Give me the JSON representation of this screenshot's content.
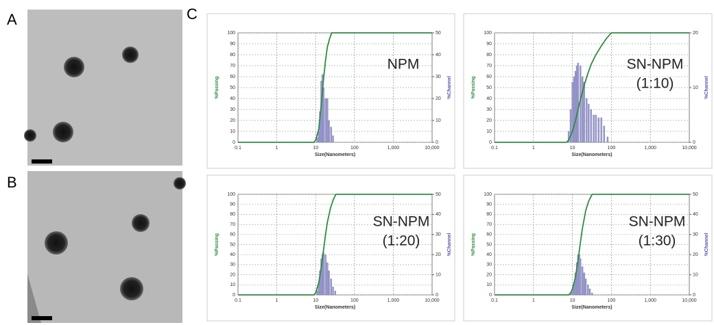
{
  "panel_labels": [
    "A",
    "B",
    "C"
  ],
  "chart_data": [
    {
      "type": "combo",
      "annotation": [
        "NPM"
      ],
      "y_label": "%Passing",
      "y2_label": "%Channel",
      "x_label": "Size(Nanometers)",
      "log_x": true,
      "grid": true,
      "xlim": [
        0.1,
        10000
      ],
      "xticks": [
        0.1,
        1,
        10,
        100,
        {
          "value": 1000,
          "label": "1,000"
        },
        {
          "value": 10000,
          "label": "10,000"
        }
      ],
      "ylim": [
        0,
        100
      ],
      "yticks": [
        0,
        10,
        20,
        30,
        40,
        50,
        60,
        70,
        80,
        90,
        100
      ],
      "y2lim": [
        0,
        50
      ],
      "y2ticks": [
        0,
        10,
        20,
        30,
        40,
        50
      ],
      "series": [
        {
          "name": "%Channel",
          "kind": "bar",
          "axis": "y2",
          "color": "#9c9cd0",
          "x": [
            11,
            12,
            13,
            14,
            15,
            16,
            18,
            20,
            22,
            25,
            28
          ],
          "values": [
            2,
            5,
            14,
            28,
            31,
            25,
            20,
            20,
            10,
            7,
            3
          ]
        },
        {
          "name": "%Passing",
          "kind": "line",
          "color": "#2e8b3e",
          "x": [
            0.1,
            9,
            10,
            12,
            14,
            16,
            18,
            20,
            23,
            26,
            10000
          ],
          "values": [
            0,
            0,
            2,
            12,
            35,
            58,
            75,
            87,
            95,
            100,
            100
          ]
        }
      ]
    },
    {
      "type": "combo",
      "annotation": [
        "SN-NPM",
        "(1:10)"
      ],
      "y_label": "%Passing",
      "y2_label": "%Channel",
      "x_label": "Size(Nanometers)",
      "log_x": true,
      "grid": true,
      "xlim": [
        0.1,
        10000
      ],
      "xticks": [
        0.1,
        1,
        10,
        100,
        {
          "value": 1000,
          "label": "1,000"
        },
        {
          "value": 10000,
          "label": "10,000"
        }
      ],
      "ylim": [
        0,
        100
      ],
      "yticks": [
        0,
        10,
        20,
        30,
        40,
        50,
        60,
        70,
        80,
        90,
        100
      ],
      "y2lim": [
        0,
        20
      ],
      "y2ticks": [
        0,
        10,
        20
      ],
      "series": [
        {
          "name": "%Channel",
          "kind": "bar",
          "axis": "y2",
          "color": "#9c9cd0",
          "x": [
            8,
            9,
            10,
            11,
            12,
            13,
            14,
            16,
            18,
            20,
            23,
            26,
            30,
            35,
            40,
            47,
            55,
            65,
            80
          ],
          "values": [
            2,
            6,
            11,
            12,
            13,
            14,
            14.5,
            14,
            12,
            11,
            8,
            7,
            6,
            5,
            5,
            4.5,
            4.5,
            3,
            1
          ]
        },
        {
          "name": "%Passing",
          "kind": "line",
          "color": "#2e8b3e",
          "x": [
            0.1,
            7,
            8,
            10,
            12,
            15,
            20,
            25,
            30,
            40,
            55,
            75,
            100,
            10000
          ],
          "values": [
            0,
            0,
            2,
            10,
            20,
            35,
            52,
            63,
            71,
            80,
            88,
            95,
            100,
            100
          ]
        }
      ]
    },
    {
      "type": "combo",
      "annotation": [
        "SN-NPM",
        "(1:20)"
      ],
      "y_label": "%Passing",
      "y2_label": "%Channel",
      "x_label": "Size(Nanometers)",
      "log_x": true,
      "grid": true,
      "xlim": [
        0.1,
        10000
      ],
      "xticks": [
        0.1,
        1,
        10,
        100,
        {
          "value": 1000,
          "label": "1,000"
        },
        {
          "value": 10000,
          "label": "10,000"
        }
      ],
      "ylim": [
        0,
        100
      ],
      "yticks": [
        0,
        10,
        20,
        30,
        40,
        50,
        60,
        70,
        80,
        90,
        100
      ],
      "y2lim": [
        0,
        50
      ],
      "y2ticks": [
        0,
        10,
        20,
        30,
        40,
        50
      ],
      "series": [
        {
          "name": "%Channel",
          "kind": "bar",
          "axis": "y2",
          "color": "#9c9cd0",
          "x": [
            11,
            12,
            13,
            14,
            15,
            16,
            18,
            20,
            22,
            25,
            28,
            32
          ],
          "values": [
            2,
            6,
            12,
            18,
            20,
            21,
            20,
            16,
            12,
            8,
            4,
            2
          ]
        },
        {
          "name": "%Passing",
          "kind": "line",
          "color": "#2e8b3e",
          "x": [
            0.1,
            9,
            10,
            12,
            14,
            16,
            18,
            20,
            24,
            28,
            33,
            10000
          ],
          "values": [
            0,
            0,
            2,
            12,
            28,
            45,
            60,
            72,
            86,
            94,
            100,
            100
          ]
        }
      ]
    },
    {
      "type": "combo",
      "annotation": [
        "SN-NPM",
        "(1:30)"
      ],
      "y_label": "%Passing",
      "y2_label": "%Channel",
      "x_label": "Size(Nanometers)",
      "log_x": true,
      "grid": true,
      "xlim": [
        0.1,
        10000
      ],
      "xticks": [
        0.1,
        1,
        10,
        100,
        {
          "value": 1000,
          "label": "1,000"
        },
        {
          "value": 10000,
          "label": "10,000"
        }
      ],
      "ylim": [
        0,
        100
      ],
      "yticks": [
        0,
        10,
        20,
        30,
        40,
        50,
        60,
        70,
        80,
        90,
        100
      ],
      "y2lim": [
        0,
        50
      ],
      "y2ticks": [
        0,
        10,
        20,
        30,
        40,
        50
      ],
      "series": [
        {
          "name": "%Channel",
          "kind": "bar",
          "axis": "y2",
          "color": "#9c9cd0",
          "x": [
            9,
            10,
            11,
            12,
            13,
            14,
            15,
            16,
            18,
            20,
            22,
            25,
            28,
            32
          ],
          "values": [
            1,
            3,
            6,
            11,
            16,
            20,
            20,
            18,
            14,
            11,
            8,
            5,
            3,
            1
          ]
        },
        {
          "name": "%Passing",
          "kind": "line",
          "color": "#2e8b3e",
          "x": [
            0.1,
            8,
            9,
            10,
            12,
            14,
            16,
            18,
            22,
            26,
            32,
            10000
          ],
          "values": [
            0,
            0,
            2,
            6,
            18,
            35,
            52,
            66,
            84,
            93,
            100,
            100
          ]
        }
      ]
    }
  ]
}
